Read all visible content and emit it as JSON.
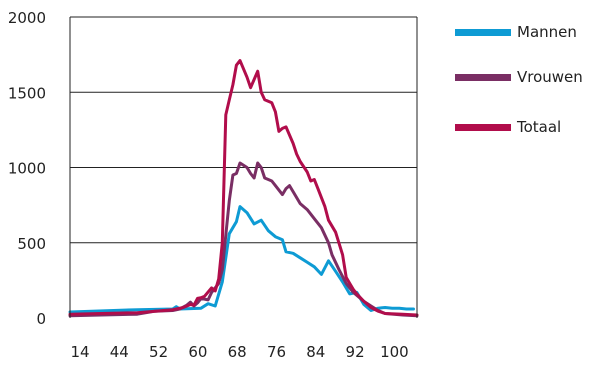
{
  "chart_data": {
    "type": "line",
    "title": "",
    "xlabel": "",
    "ylabel": "",
    "ylim": [
      0,
      2000
    ],
    "y_ticks": [
      "0",
      "500",
      "1000",
      "1500",
      "2000"
    ],
    "x_ticks": [
      "14",
      "44",
      "52",
      "60",
      "68",
      "76",
      "84",
      "92",
      "100"
    ],
    "grid": "horizontal",
    "legend_position": "right",
    "series": [
      {
        "name": "Mannen",
        "color": "#0e9bd4",
        "values": [
          [
            1,
            40
          ],
          [
            20,
            55
          ],
          [
            30,
            60
          ],
          [
            31,
            75
          ],
          [
            32,
            60
          ],
          [
            38,
            65
          ],
          [
            40,
            95
          ],
          [
            42,
            80
          ],
          [
            44,
            240
          ],
          [
            46,
            560
          ],
          [
            48,
            640
          ],
          [
            49,
            740
          ],
          [
            51,
            700
          ],
          [
            53,
            625
          ],
          [
            55,
            650
          ],
          [
            57,
            580
          ],
          [
            59,
            540
          ],
          [
            61,
            520
          ],
          [
            62,
            440
          ],
          [
            64,
            430
          ],
          [
            66,
            400
          ],
          [
            68,
            370
          ],
          [
            70,
            340
          ],
          [
            72,
            290
          ],
          [
            74,
            380
          ],
          [
            76,
            310
          ],
          [
            78,
            240
          ],
          [
            80,
            160
          ],
          [
            82,
            170
          ],
          [
            84,
            90
          ],
          [
            86,
            50
          ],
          [
            88,
            65
          ],
          [
            90,
            70
          ],
          [
            92,
            65
          ],
          [
            94,
            65
          ],
          [
            96,
            60
          ],
          [
            98,
            60
          ]
        ]
      },
      {
        "name": "Vrouwen",
        "color": "#7a2e64",
        "values": [
          [
            1,
            15
          ],
          [
            20,
            25
          ],
          [
            25,
            45
          ],
          [
            30,
            50
          ],
          [
            32,
            60
          ],
          [
            34,
            85
          ],
          [
            35,
            105
          ],
          [
            36,
            80
          ],
          [
            37,
            100
          ],
          [
            38,
            130
          ],
          [
            40,
            120
          ],
          [
            41,
            170
          ],
          [
            43,
            230
          ],
          [
            44,
            320
          ],
          [
            46,
            780
          ],
          [
            47,
            950
          ],
          [
            48,
            960
          ],
          [
            49,
            1030
          ],
          [
            51,
            1000
          ],
          [
            52,
            960
          ],
          [
            53,
            930
          ],
          [
            54,
            1030
          ],
          [
            55,
            1000
          ],
          [
            56,
            930
          ],
          [
            57,
            920
          ],
          [
            58,
            910
          ],
          [
            59,
            880
          ],
          [
            61,
            820
          ],
          [
            62,
            860
          ],
          [
            63,
            880
          ],
          [
            64,
            840
          ],
          [
            66,
            760
          ],
          [
            68,
            720
          ],
          [
            70,
            660
          ],
          [
            72,
            600
          ],
          [
            74,
            500
          ],
          [
            75,
            420
          ],
          [
            77,
            320
          ],
          [
            79,
            230
          ],
          [
            81,
            170
          ],
          [
            84,
            110
          ],
          [
            86,
            80
          ],
          [
            88,
            50
          ],
          [
            90,
            30
          ],
          [
            95,
            20
          ],
          [
            99,
            15
          ]
        ]
      },
      {
        "name": "Totaal",
        "color": "#b10d4b",
        "values": [
          [
            1,
            25
          ],
          [
            20,
            35
          ],
          [
            25,
            45
          ],
          [
            30,
            55
          ],
          [
            33,
            70
          ],
          [
            35,
            90
          ],
          [
            36,
            85
          ],
          [
            37,
            130
          ],
          [
            38,
            135
          ],
          [
            39,
            145
          ],
          [
            41,
            200
          ],
          [
            42,
            180
          ],
          [
            43,
            260
          ],
          [
            44,
            500
          ],
          [
            45,
            1350
          ],
          [
            46,
            1450
          ],
          [
            47,
            1550
          ],
          [
            48,
            1680
          ],
          [
            49,
            1710
          ],
          [
            51,
            1600
          ],
          [
            52,
            1530
          ],
          [
            54,
            1640
          ],
          [
            55,
            1500
          ],
          [
            56,
            1450
          ],
          [
            58,
            1430
          ],
          [
            59,
            1370
          ],
          [
            60,
            1240
          ],
          [
            61,
            1260
          ],
          [
            62,
            1270
          ],
          [
            64,
            1160
          ],
          [
            65,
            1090
          ],
          [
            66,
            1040
          ],
          [
            68,
            970
          ],
          [
            69,
            910
          ],
          [
            70,
            920
          ],
          [
            71,
            860
          ],
          [
            73,
            740
          ],
          [
            74,
            650
          ],
          [
            76,
            570
          ],
          [
            78,
            420
          ],
          [
            79,
            270
          ],
          [
            80,
            230
          ],
          [
            81,
            190
          ],
          [
            82,
            160
          ],
          [
            84,
            110
          ],
          [
            86,
            70
          ],
          [
            88,
            45
          ],
          [
            90,
            30
          ],
          [
            95,
            25
          ],
          [
            99,
            20
          ]
        ]
      }
    ]
  }
}
